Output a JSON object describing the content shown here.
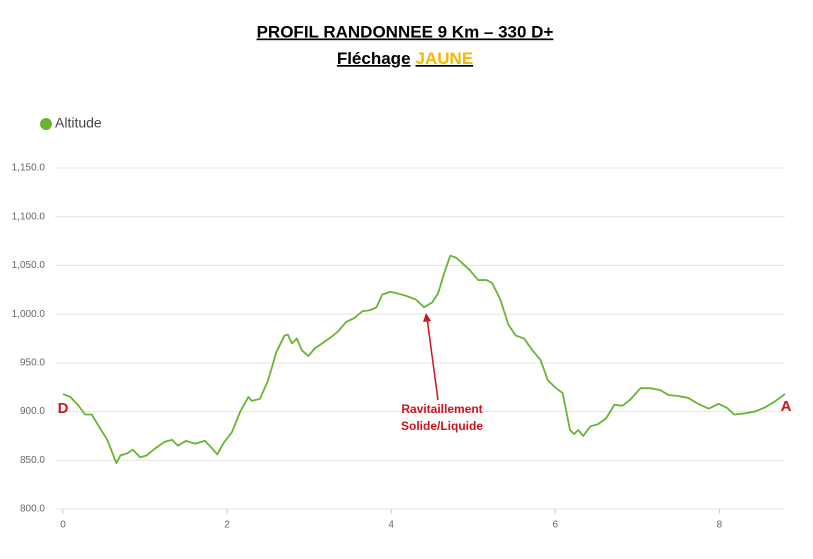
{
  "chart_data": {
    "type": "line",
    "title": "PROFIL RANDONNEE 9 Km – 330 D+",
    "subtitle": "Fléchage",
    "subtitle_emphasis": "JAUNE",
    "subtitle_emphasis_color": "#f5b800",
    "legend": "top-left",
    "grid": true,
    "annotations": [
      "D",
      "A",
      [
        "Ravitaillement",
        "Solide/Liquide"
      ]
    ],
    "annotation_color": "#d0121b",
    "xlim": [
      0,
      8.8
    ],
    "xticks": [
      0,
      2,
      4,
      6,
      8
    ],
    "ylim": [
      800,
      1150
    ],
    "yticks": [
      {
        "value": 800,
        "label": "800.0"
      },
      {
        "value": 850,
        "label": "850.0"
      },
      {
        "value": 900,
        "label": "900.0"
      },
      {
        "value": 950,
        "label": "950.0"
      },
      {
        "value": 1000,
        "label": "1,000.0"
      },
      {
        "value": 1050,
        "label": "1,050.0"
      },
      {
        "value": 1100,
        "label": "1,100.0"
      },
      {
        "value": 1150,
        "label": "1,150.0"
      }
    ],
    "x": [
      0,
      0.09,
      0.18,
      0.27,
      0.35,
      0.45,
      0.54,
      0.6,
      0.65,
      0.7,
      0.78,
      0.85,
      0.94,
      1.02,
      1.12,
      1.24,
      1.33,
      1.4,
      1.5,
      1.61,
      1.73,
      1.83,
      1.88,
      1.96,
      2.06,
      2.16,
      2.26,
      2.3,
      2.4,
      2.5,
      2.6,
      2.7,
      2.74,
      2.79,
      2.85,
      2.91,
      2.99,
      3.07,
      3.16,
      3.26,
      3.35,
      3.45,
      3.55,
      3.65,
      3.74,
      3.82,
      3.89,
      3.99,
      4.09,
      4.21,
      4.3,
      4.4,
      4.5,
      4.57,
      4.65,
      4.72,
      4.79,
      4.87,
      4.96,
      5.06,
      5.16,
      5.23,
      5.33,
      5.43,
      5.52,
      5.62,
      5.72,
      5.82,
      5.91,
      6.01,
      6.09,
      6.13,
      6.18,
      6.23,
      6.28,
      6.34,
      6.43,
      6.52,
      6.62,
      6.72,
      6.82,
      6.91,
      7.04,
      7.16,
      7.28,
      7.38,
      7.5,
      7.62,
      7.74,
      7.87,
      7.99,
      8.09,
      8.18,
      8.3,
      8.43,
      8.55,
      8.67,
      8.8
    ],
    "series": [
      {
        "name": "Altitude",
        "color": "#6ab333",
        "values": [
          918,
          915,
          907,
          897,
          897,
          883,
          871,
          858,
          847,
          855,
          857,
          861,
          853,
          855,
          862,
          869,
          871,
          865,
          870,
          867,
          870,
          861,
          856,
          868,
          879,
          900,
          915,
          911,
          913,
          932,
          961,
          978,
          979,
          970,
          975,
          963,
          957,
          965,
          970,
          976,
          982,
          992,
          996,
          1003,
          1004,
          1007,
          1020,
          1023,
          1021,
          1018,
          1015,
          1007,
          1012,
          1021,
          1043,
          1060,
          1058,
          1052,
          1045,
          1035,
          1035,
          1032,
          1015,
          989,
          978,
          975,
          963,
          953,
          932,
          924,
          919,
          902,
          881,
          877,
          881,
          875,
          885,
          887,
          893,
          907,
          906,
          912,
          924,
          924,
          922,
          917,
          916,
          914,
          908,
          903,
          908,
          904,
          897,
          898,
          900,
          904,
          910,
          918
        ]
      }
    ]
  }
}
